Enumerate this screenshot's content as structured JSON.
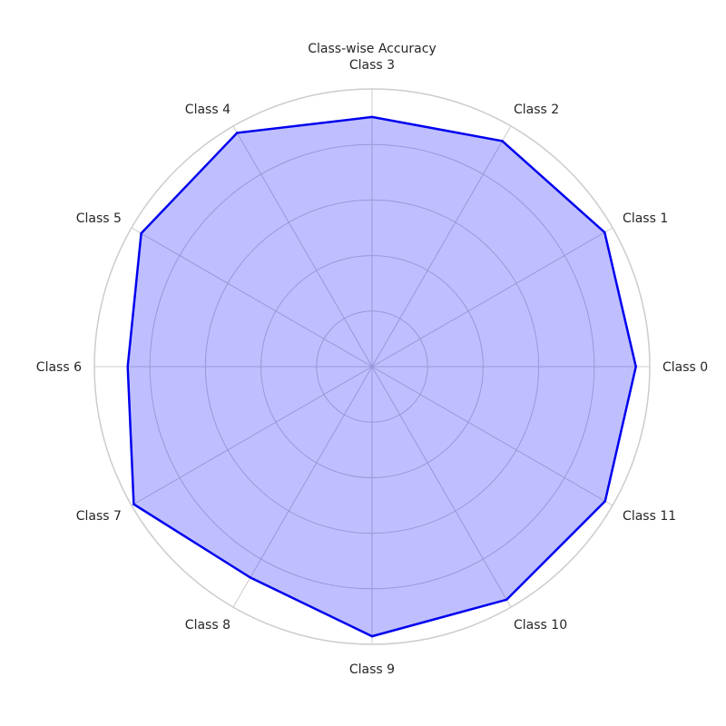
{
  "chart_data": {
    "type": "radar",
    "title": "Class-wise Accuracy",
    "categories": [
      "Class 0",
      "Class 1",
      "Class 2",
      "Class 3",
      "Class 4",
      "Class 5",
      "Class 6",
      "Class 7",
      "Class 8",
      "Class 9",
      "Class 10",
      "Class 11"
    ],
    "series": [
      {
        "values": [
          0.95,
          0.967,
          0.938,
          0.899,
          0.972,
          0.96,
          0.88,
          0.991,
          0.877,
          0.971,
          0.969,
          0.969
        ],
        "line_color": "#0000ee",
        "fill_color": "#0000ff",
        "fill_opacity": 0.25
      }
    ],
    "radial_range": [
      0,
      1
    ],
    "radial_ticks": [
      0.2,
      0.4,
      0.6,
      0.8
    ],
    "radial_tick_labels_visible": false,
    "grid": true,
    "start_angle_deg": 0,
    "direction": "counterclockwise"
  }
}
